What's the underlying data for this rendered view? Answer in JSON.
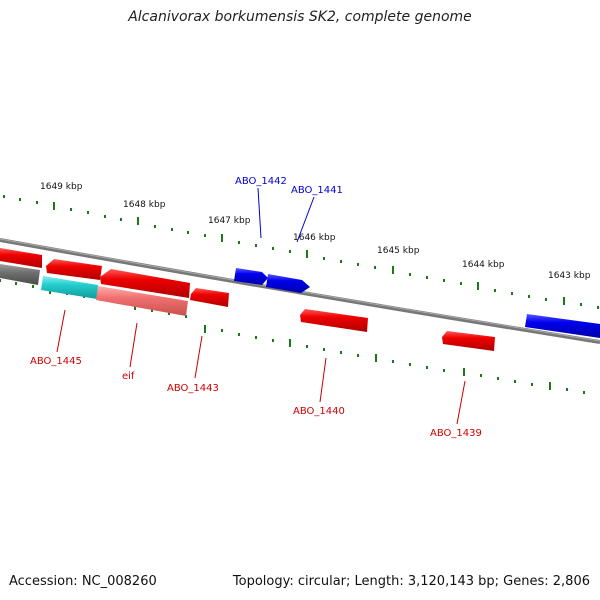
{
  "title": "Alcanivorax borkumensis SK2, complete genome",
  "footer": {
    "accession": "Accession: NC_008260",
    "summary": "Topology: circular; Length: 3,120,143 bp; Genes: 2,806"
  },
  "scale_labels": [
    "1649 kbp",
    "1648 kbp",
    "1647 kbp",
    "1646 kbp",
    "1645 kbp",
    "1644 kbp",
    "1643 kbp"
  ],
  "gene_labels": [
    {
      "text": "ABO_1442",
      "color": "#0000cc"
    },
    {
      "text": "ABO_1441",
      "color": "#0000cc"
    },
    {
      "text": "ABO_1445",
      "color": "#cc0000"
    },
    {
      "text": "eif",
      "color": "#cc0000"
    },
    {
      "text": "ABO_1443",
      "color": "#cc0000"
    },
    {
      "text": "ABO_1440",
      "color": "#cc0000"
    },
    {
      "text": "ABO_1439",
      "color": "#cc0000"
    }
  ],
  "colors": {
    "forward_strand": "#0000ee",
    "reverse_strand": "#ee0000",
    "backbone": "#777777",
    "tick_marks": "#1a7a1a",
    "rna_gene": "#22cccc",
    "pseudo_gene": "#f07070",
    "other_gene": "#707070"
  }
}
